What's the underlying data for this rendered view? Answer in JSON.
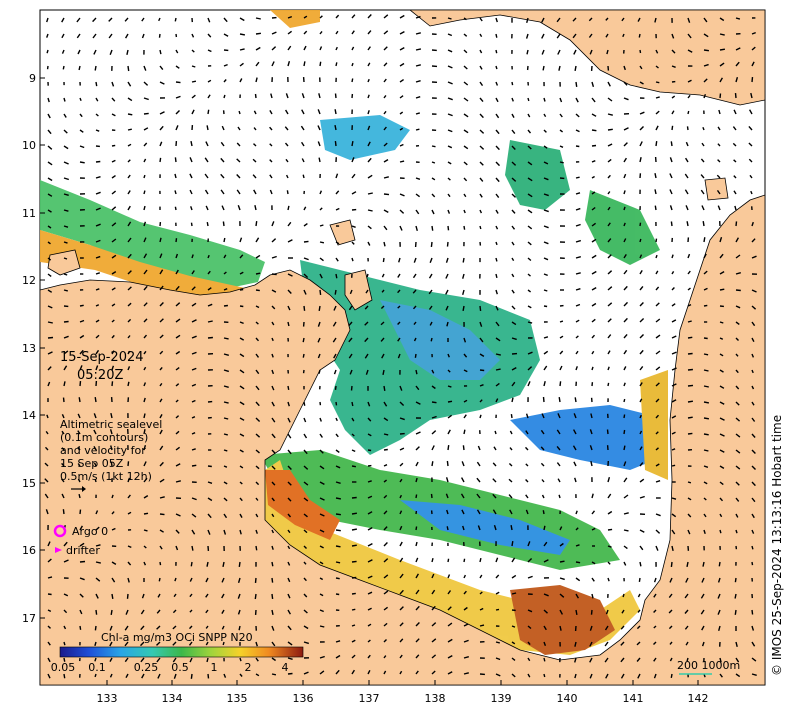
{
  "map": {
    "date_line1": "15-Sep-2024",
    "date_line2": "05:20Z",
    "legend_lines": [
      "Altimetric sealevel",
      "(0.1m contours)",
      "and velocity for",
      "15 Sep 05Z",
      "0.5m/s (1kt 12h)"
    ],
    "argo_label": "Argo 0",
    "drifter_label": "drifter",
    "colorbar_title": "Chl-a mg/m3 OCi SNPP N20",
    "colorbar_ticks": [
      "0.05",
      "0.1",
      "0.25",
      "0.5",
      "1",
      "2",
      "4"
    ],
    "scale_label": "200  1000m",
    "credit": "© IMOS 25-Sep-2024 13:13:16 Hobart time",
    "lon_ticks": [
      "133",
      "134",
      "135",
      "136",
      "137",
      "138",
      "139",
      "140",
      "141",
      "142"
    ],
    "lat_ticks": [
      "9",
      "10",
      "11",
      "12",
      "13",
      "14",
      "15",
      "16",
      "17"
    ],
    "colors": {
      "land": "#f9c99a",
      "ocean": "#ffffff",
      "argo": "#ff00ff",
      "scale": "#33ccaa"
    }
  }
}
